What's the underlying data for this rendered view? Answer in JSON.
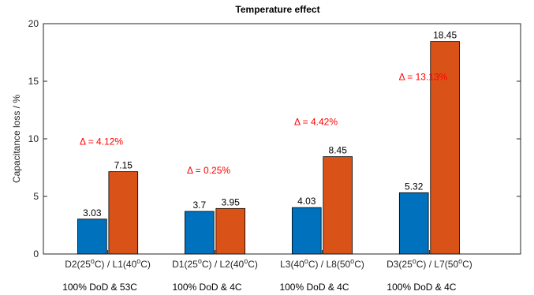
{
  "chart_data": {
    "type": "bar",
    "title": "Temperature effect",
    "ylabel": "Capacitance loss / %",
    "xlabel": "",
    "ylim": [
      0,
      20
    ],
    "yticks": [
      0,
      5,
      10,
      15,
      20
    ],
    "grid": false,
    "legend": "none",
    "colors": [
      "#0072BD",
      "#D95319"
    ],
    "categories": [
      {
        "label_parts": [
          {
            "t": "D2(25"
          },
          {
            "t": "o",
            "sup": true
          },
          {
            "t": "C) / L1(40"
          },
          {
            "t": "o",
            "sup": true
          },
          {
            "t": "C)"
          }
        ],
        "condition": "100% DoD & 53C"
      },
      {
        "label_parts": [
          {
            "t": "D1(25"
          },
          {
            "t": "o",
            "sup": true
          },
          {
            "t": "C) / L2(40"
          },
          {
            "t": "o",
            "sup": true
          },
          {
            "t": "C)"
          }
        ],
        "condition": "100% DoD & 4C"
      },
      {
        "label_parts": [
          {
            "t": "L3(40"
          },
          {
            "t": "o",
            "sup": true
          },
          {
            "t": "C) / L8(50"
          },
          {
            "t": "o",
            "sup": true
          },
          {
            "t": "C)"
          }
        ],
        "condition": "100% DoD & 4C"
      },
      {
        "label_parts": [
          {
            "t": "D3(25"
          },
          {
            "t": "o",
            "sup": true
          },
          {
            "t": "C) / L7(50"
          },
          {
            "t": "o",
            "sup": true
          },
          {
            "t": "C)"
          }
        ],
        "condition": "100% DoD & 4C"
      }
    ],
    "series": [
      {
        "values": [
          3.03,
          3.7,
          4.03,
          5.32
        ],
        "labels": [
          "3.03",
          "3.7",
          "4.03",
          "5.32"
        ]
      },
      {
        "values": [
          7.15,
          3.95,
          8.45,
          18.45
        ],
        "labels": [
          "7.15",
          "3.95",
          "8.45",
          "18.45"
        ]
      }
    ],
    "annotations": [
      {
        "text": "Δ = 4.12%",
        "x": 1,
        "y": 9.5
      },
      {
        "text": "Δ = 0.25%",
        "x": 2,
        "y": 7.0
      },
      {
        "text": "Δ = 4.42%",
        "x": 3,
        "y": 11.2
      },
      {
        "text": "Δ = 13.13%",
        "x": 4,
        "y": 15.1
      }
    ]
  }
}
